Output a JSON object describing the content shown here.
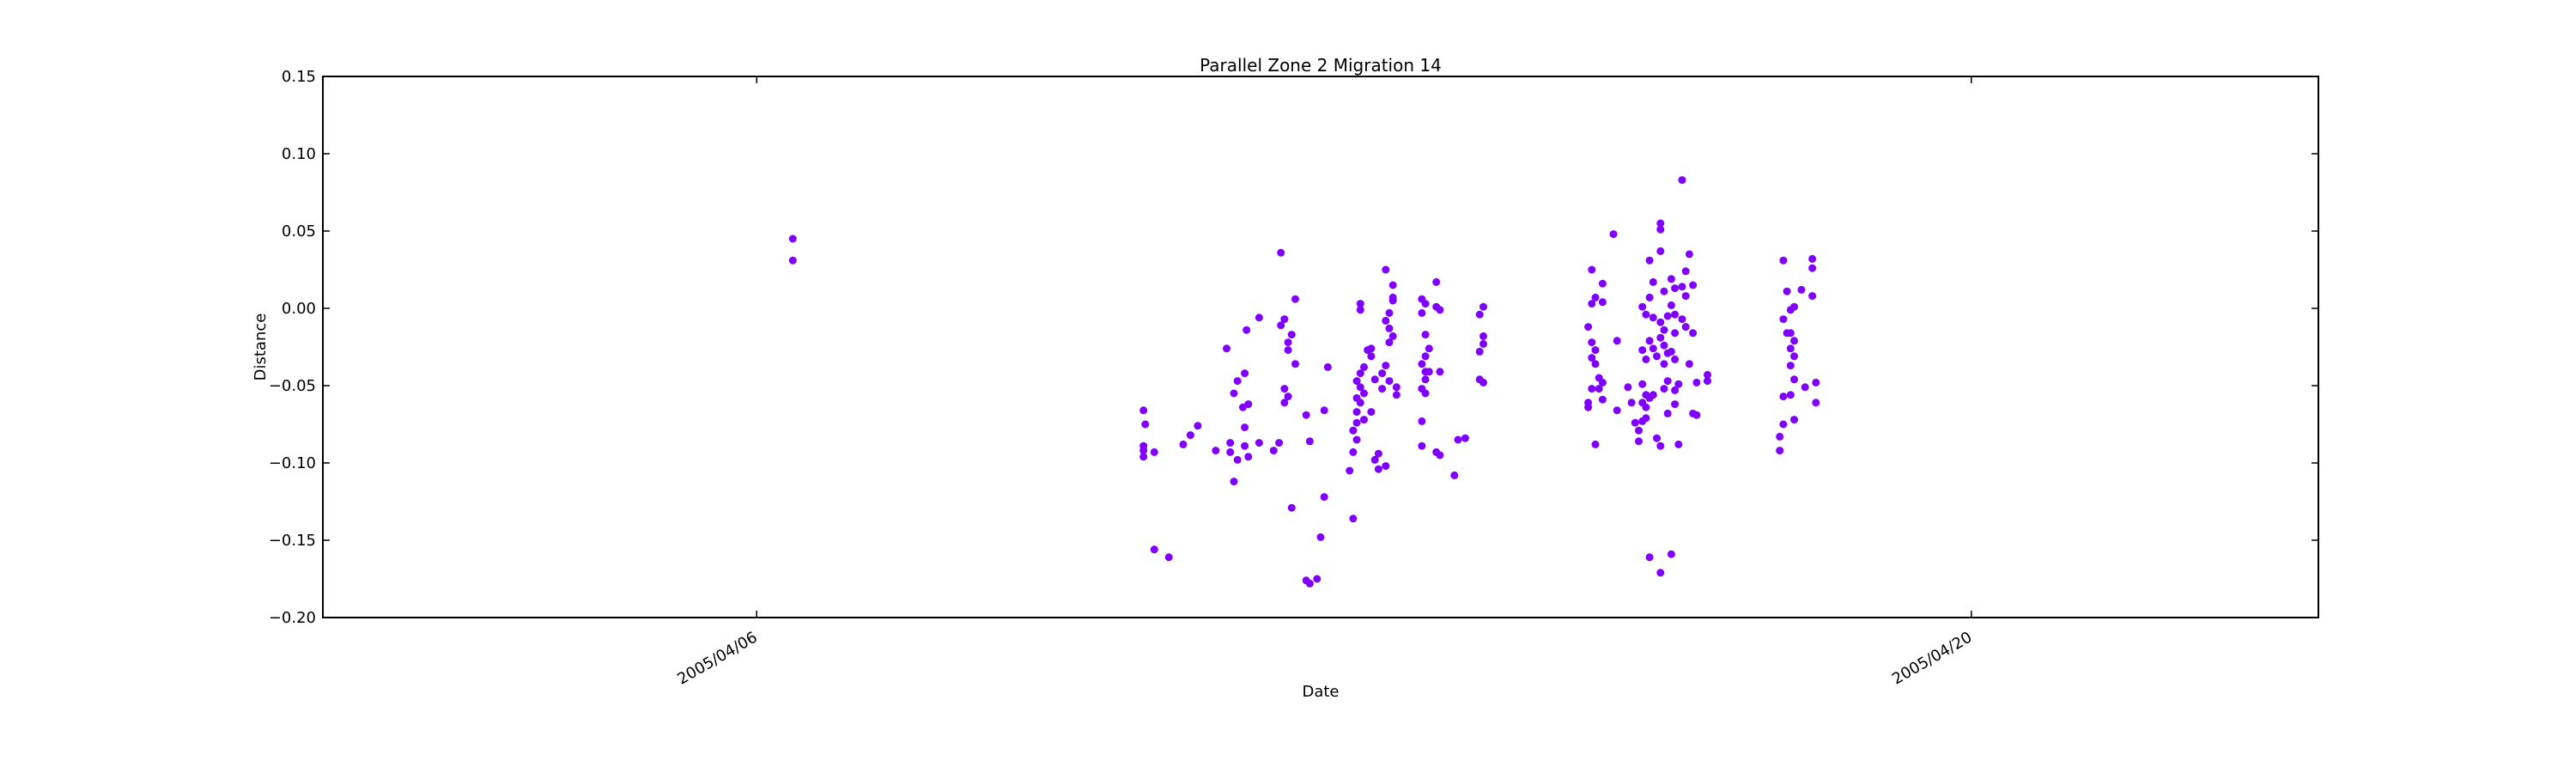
{
  "chart_data": {
    "type": "scatter",
    "title": "Parallel Zone 2 Migration 14",
    "xlabel": "Date",
    "ylabel": "Distance",
    "xlim": [
      "2005-04-01",
      "2005-04-24"
    ],
    "ylim": [
      -0.2,
      0.15
    ],
    "yticks": [
      -0.2,
      -0.15,
      -0.1,
      -0.05,
      0.0,
      0.05,
      0.1,
      0.15
    ],
    "ytick_labels": [
      "−0.20",
      "−0.15",
      "−0.10",
      "−0.05",
      "0.00",
      "0.05",
      "0.10",
      "0.15"
    ],
    "xticks": [
      "2005-04-06",
      "2005-04-20"
    ],
    "xtick_labels": [
      "2005/04/06",
      "2005/04/20"
    ],
    "grid": false,
    "marker_color": "#7f00ff",
    "series": [
      {
        "points": [
          [
            "2005-04-06 10:00",
            0.045
          ],
          [
            "2005-04-06 10:00",
            0.031
          ],
          [
            "2005-04-10 11:00",
            -0.066
          ],
          [
            "2005-04-10 11:30",
            -0.075
          ],
          [
            "2005-04-10 11:00",
            -0.089
          ],
          [
            "2005-04-10 11:00",
            -0.092
          ],
          [
            "2005-04-10 11:00",
            -0.096
          ],
          [
            "2005-04-10 14:00",
            -0.093
          ],
          [
            "2005-04-10 14:00",
            -0.156
          ],
          [
            "2005-04-10 18:00",
            -0.161
          ],
          [
            "2005-04-10 22:00",
            -0.088
          ],
          [
            "2005-04-11 00:00",
            -0.082
          ],
          [
            "2005-04-11 02:00",
            -0.076
          ],
          [
            "2005-04-11 07:00",
            -0.092
          ],
          [
            "2005-04-11 10:00",
            -0.026
          ],
          [
            "2005-04-11 12:00",
            -0.055
          ],
          [
            "2005-04-11 13:00",
            -0.047
          ],
          [
            "2005-04-11 11:00",
            -0.087
          ],
          [
            "2005-04-11 11:00",
            -0.093
          ],
          [
            "2005-04-11 13:00",
            -0.098
          ],
          [
            "2005-04-11 12:00",
            -0.112
          ],
          [
            "2005-04-11 15:00",
            -0.042
          ],
          [
            "2005-04-11 16:00",
            -0.062
          ],
          [
            "2005-04-11 14:30",
            -0.064
          ],
          [
            "2005-04-11 15:00",
            -0.077
          ],
          [
            "2005-04-11 15:00",
            -0.089
          ],
          [
            "2005-04-11 16:00",
            -0.096
          ],
          [
            "2005-04-11 15:30",
            -0.014
          ],
          [
            "2005-04-11 19:00",
            -0.006
          ],
          [
            "2005-04-11 19:00",
            -0.087
          ],
          [
            "2005-04-11 23:00",
            -0.092
          ],
          [
            "2005-04-12 01:00",
            0.036
          ],
          [
            "2005-04-12 01:00",
            -0.011
          ],
          [
            "2005-04-12 02:00",
            -0.007
          ],
          [
            "2005-04-12 04:00",
            -0.017
          ],
          [
            "2005-04-12 03:00",
            -0.022
          ],
          [
            "2005-04-12 03:00",
            -0.027
          ],
          [
            "2005-04-12 02:00",
            -0.052
          ],
          [
            "2005-04-12 03:00",
            -0.057
          ],
          [
            "2005-04-12 02:00",
            -0.061
          ],
          [
            "2005-04-12 00:30",
            -0.087
          ],
          [
            "2005-04-12 05:00",
            0.006
          ],
          [
            "2005-04-12 05:00",
            -0.036
          ],
          [
            "2005-04-12 04:00",
            -0.129
          ],
          [
            "2005-04-12 08:00",
            -0.069
          ],
          [
            "2005-04-12 09:00",
            -0.086
          ],
          [
            "2005-04-12 08:00",
            -0.176
          ],
          [
            "2005-04-12 09:00",
            -0.178
          ],
          [
            "2005-04-12 11:00",
            -0.175
          ],
          [
            "2005-04-12 14:00",
            -0.038
          ],
          [
            "2005-04-12 13:00",
            -0.066
          ],
          [
            "2005-04-12 13:00",
            -0.122
          ],
          [
            "2005-04-12 12:00",
            -0.148
          ],
          [
            "2005-04-12 21:00",
            -0.136
          ],
          [
            "2005-04-12 20:00",
            -0.105
          ],
          [
            "2005-04-12 23:00",
            0.003
          ],
          [
            "2005-04-12 23:00",
            -0.001
          ],
          [
            "2005-04-12 21:00",
            -0.093
          ],
          [
            "2005-04-12 21:00",
            -0.079
          ],
          [
            "2005-04-12 22:00",
            -0.074
          ],
          [
            "2005-04-12 22:00",
            -0.067
          ],
          [
            "2005-04-12 23:00",
            -0.061
          ],
          [
            "2005-04-13 00:00",
            -0.072
          ],
          [
            "2005-04-12 22:00",
            -0.058
          ],
          [
            "2005-04-12 23:00",
            -0.051
          ],
          [
            "2005-04-12 22:00",
            -0.047
          ],
          [
            "2005-04-12 23:00",
            -0.042
          ],
          [
            "2005-04-13 00:00",
            -0.038
          ],
          [
            "2005-04-13 00:00",
            -0.055
          ],
          [
            "2005-04-12 21:00",
            -0.079
          ],
          [
            "2005-04-12 22:00",
            -0.085
          ],
          [
            "2005-04-13 02:00",
            -0.026
          ],
          [
            "2005-04-13 02:00",
            -0.031
          ],
          [
            "2005-04-13 03:00",
            -0.046
          ],
          [
            "2005-04-13 02:00",
            -0.067
          ],
          [
            "2005-04-13 03:00",
            -0.098
          ],
          [
            "2005-04-13 04:00",
            -0.104
          ],
          [
            "2005-04-13 04:00",
            -0.094
          ],
          [
            "2005-04-13 01:00",
            -0.027
          ],
          [
            "2005-04-13 06:00",
            0.025
          ],
          [
            "2005-04-13 08:00",
            0.015
          ],
          [
            "2005-04-13 08:00",
            0.007
          ],
          [
            "2005-04-13 07:00",
            -0.003
          ],
          [
            "2005-04-13 06:00",
            -0.008
          ],
          [
            "2005-04-13 07:00",
            -0.013
          ],
          [
            "2005-04-13 08:00",
            -0.018
          ],
          [
            "2005-04-13 07:00",
            -0.022
          ],
          [
            "2005-04-13 06:00",
            -0.037
          ],
          [
            "2005-04-13 05:00",
            -0.042
          ],
          [
            "2005-04-13 07:00",
            -0.047
          ],
          [
            "2005-04-13 05:00",
            -0.052
          ],
          [
            "2005-04-13 09:00",
            -0.056
          ],
          [
            "2005-04-13 06:00",
            -0.102
          ],
          [
            "2005-04-13 09:00",
            -0.051
          ],
          [
            "2005-04-13 08:00",
            0.005
          ],
          [
            "2005-04-13 16:00",
            0.006
          ],
          [
            "2005-04-13 17:00",
            0.003
          ],
          [
            "2005-04-13 16:00",
            -0.003
          ],
          [
            "2005-04-13 17:00",
            -0.017
          ],
          [
            "2005-04-13 18:00",
            -0.026
          ],
          [
            "2005-04-13 17:00",
            -0.031
          ],
          [
            "2005-04-13 16:00",
            -0.036
          ],
          [
            "2005-04-13 18:00",
            -0.041
          ],
          [
            "2005-04-13 17:00",
            -0.046
          ],
          [
            "2005-04-13 16:00",
            -0.052
          ],
          [
            "2005-04-13 17:00",
            -0.055
          ],
          [
            "2005-04-13 16:00",
            -0.073
          ],
          [
            "2005-04-13 16:00",
            -0.089
          ],
          [
            "2005-04-13 17:00",
            -0.041
          ],
          [
            "2005-04-13 20:00",
            0.017
          ],
          [
            "2005-04-13 20:00",
            0.001
          ],
          [
            "2005-04-13 21:00",
            -0.001
          ],
          [
            "2005-04-13 20:00",
            -0.093
          ],
          [
            "2005-04-13 21:00",
            -0.095
          ],
          [
            "2005-04-13 21:00",
            -0.041
          ],
          [
            "2005-04-14 01:00",
            -0.108
          ],
          [
            "2005-04-14 02:00",
            -0.085
          ],
          [
            "2005-04-14 04:00",
            -0.084
          ],
          [
            "2005-04-14 09:00",
            0.001
          ],
          [
            "2005-04-14 08:00",
            -0.004
          ],
          [
            "2005-04-14 09:00",
            -0.018
          ],
          [
            "2005-04-14 08:00",
            -0.028
          ],
          [
            "2005-04-14 09:00",
            -0.023
          ],
          [
            "2005-04-14 08:00",
            -0.046
          ],
          [
            "2005-04-14 09:00",
            -0.048
          ],
          [
            "2005-04-15 15:00",
            0.025
          ],
          [
            "2005-04-15 15:00",
            0.003
          ],
          [
            "2005-04-15 16:00",
            0.007
          ],
          [
            "2005-04-15 14:00",
            -0.012
          ],
          [
            "2005-04-15 15:00",
            -0.022
          ],
          [
            "2005-04-15 16:00",
            -0.027
          ],
          [
            "2005-04-15 15:00",
            -0.032
          ],
          [
            "2005-04-15 16:00",
            -0.036
          ],
          [
            "2005-04-15 14:00",
            -0.061
          ],
          [
            "2005-04-15 14:00",
            -0.064
          ],
          [
            "2005-04-15 16:00",
            -0.088
          ],
          [
            "2005-04-15 15:00",
            -0.052
          ],
          [
            "2005-04-15 18:00",
            0.016
          ],
          [
            "2005-04-15 18:00",
            0.004
          ],
          [
            "2005-04-15 17:00",
            -0.045
          ],
          [
            "2005-04-15 18:00",
            -0.048
          ],
          [
            "2005-04-15 17:00",
            -0.052
          ],
          [
            "2005-04-15 18:00",
            -0.059
          ],
          [
            "2005-04-15 21:00",
            0.048
          ],
          [
            "2005-04-15 22:00",
            -0.021
          ],
          [
            "2005-04-15 22:00",
            -0.066
          ],
          [
            "2005-04-16 01:00",
            -0.051
          ],
          [
            "2005-04-16 02:00",
            -0.061
          ],
          [
            "2005-04-16 03:00",
            -0.074
          ],
          [
            "2005-04-16 04:00",
            -0.079
          ],
          [
            "2005-04-16 04:00",
            -0.086
          ],
          [
            "2005-04-16 05:00",
            0.001
          ],
          [
            "2005-04-16 06:00",
            -0.004
          ],
          [
            "2005-04-16 05:00",
            -0.027
          ],
          [
            "2005-04-16 06:00",
            -0.033
          ],
          [
            "2005-04-16 05:00",
            -0.049
          ],
          [
            "2005-04-16 06:00",
            -0.056
          ],
          [
            "2005-04-16 05:00",
            -0.061
          ],
          [
            "2005-04-16 06:00",
            -0.064
          ],
          [
            "2005-04-16 07:00",
            -0.058
          ],
          [
            "2005-04-16 05:00",
            -0.073
          ],
          [
            "2005-04-16 06:00",
            -0.071
          ],
          [
            "2005-04-16 07:00",
            -0.161
          ],
          [
            "2005-04-16 07:00",
            0.031
          ],
          [
            "2005-04-16 08:00",
            0.017
          ],
          [
            "2005-04-16 07:00",
            0.007
          ],
          [
            "2005-04-16 08:00",
            -0.006
          ],
          [
            "2005-04-16 07:00",
            -0.021
          ],
          [
            "2005-04-16 08:00",
            -0.026
          ],
          [
            "2005-04-16 09:00",
            -0.031
          ],
          [
            "2005-04-16 08:00",
            -0.056
          ],
          [
            "2005-04-16 09:00",
            -0.084
          ],
          [
            "2005-04-16 10:00",
            -0.089
          ],
          [
            "2005-04-16 10:00",
            -0.171
          ],
          [
            "2005-04-16 10:00",
            0.055
          ],
          [
            "2005-04-16 10:00",
            0.051
          ],
          [
            "2005-04-16 10:00",
            0.037
          ],
          [
            "2005-04-16 11:00",
            0.011
          ],
          [
            "2005-04-16 10:00",
            -0.009
          ],
          [
            "2005-04-16 11:00",
            -0.014
          ],
          [
            "2005-04-16 10:00",
            -0.019
          ],
          [
            "2005-04-16 11:00",
            -0.024
          ],
          [
            "2005-04-16 12:00",
            -0.029
          ],
          [
            "2005-04-16 11:00",
            -0.036
          ],
          [
            "2005-04-16 12:00",
            -0.047
          ],
          [
            "2005-04-16 11:00",
            -0.052
          ],
          [
            "2005-04-16 12:00",
            -0.068
          ],
          [
            "2005-04-16 13:00",
            -0.159
          ],
          [
            "2005-04-16 12:00",
            -0.005
          ],
          [
            "2005-04-16 13:00",
            0.019
          ],
          [
            "2005-04-16 14:00",
            0.013
          ],
          [
            "2005-04-16 13:00",
            0.002
          ],
          [
            "2005-04-16 14:00",
            -0.004
          ],
          [
            "2005-04-16 14:00",
            -0.016
          ],
          [
            "2005-04-16 13:00",
            -0.028
          ],
          [
            "2005-04-16 14:00",
            -0.033
          ],
          [
            "2005-04-16 15:00",
            -0.049
          ],
          [
            "2005-04-16 14:00",
            -0.053
          ],
          [
            "2005-04-16 15:00",
            -0.088
          ],
          [
            "2005-04-16 14:00",
            -0.062
          ],
          [
            "2005-04-16 16:00",
            0.083
          ],
          [
            "2005-04-16 17:00",
            0.024
          ],
          [
            "2005-04-16 16:00",
            0.014
          ],
          [
            "2005-04-16 17:00",
            0.008
          ],
          [
            "2005-04-16 16:00",
            -0.007
          ],
          [
            "2005-04-16 17:00",
            -0.012
          ],
          [
            "2005-04-16 18:00",
            -0.036
          ],
          [
            "2005-04-16 18:00",
            0.035
          ],
          [
            "2005-04-16 19:00",
            0.015
          ],
          [
            "2005-04-16 19:00",
            -0.016
          ],
          [
            "2005-04-16 20:00",
            -0.048
          ],
          [
            "2005-04-16 19:00",
            -0.068
          ],
          [
            "2005-04-16 20:00",
            -0.069
          ],
          [
            "2005-04-16 23:00",
            -0.043
          ],
          [
            "2005-04-16 23:00",
            -0.047
          ],
          [
            "2005-04-17 20:00",
            0.031
          ],
          [
            "2005-04-17 21:00",
            0.011
          ],
          [
            "2005-04-17 20:00",
            -0.007
          ],
          [
            "2005-04-17 21:00",
            -0.016
          ],
          [
            "2005-04-17 20:00",
            -0.057
          ],
          [
            "2005-04-17 19:00",
            -0.083
          ],
          [
            "2005-04-17 19:00",
            -0.092
          ],
          [
            "2005-04-17 20:00",
            -0.075
          ],
          [
            "2005-04-17 22:00",
            -0.001
          ],
          [
            "2005-04-17 23:00",
            0.001
          ],
          [
            "2005-04-17 22:00",
            -0.016
          ],
          [
            "2005-04-17 23:00",
            -0.021
          ],
          [
            "2005-04-17 22:00",
            -0.026
          ],
          [
            "2005-04-17 23:00",
            -0.031
          ],
          [
            "2005-04-17 22:00",
            -0.037
          ],
          [
            "2005-04-17 23:00",
            -0.046
          ],
          [
            "2005-04-17 22:00",
            -0.056
          ],
          [
            "2005-04-17 23:00",
            -0.072
          ],
          [
            "2005-04-18 01:00",
            0.012
          ],
          [
            "2005-04-18 02:00",
            -0.051
          ],
          [
            "2005-04-18 04:00",
            0.032
          ],
          [
            "2005-04-18 04:00",
            0.026
          ],
          [
            "2005-04-18 04:00",
            0.008
          ],
          [
            "2005-04-18 05:00",
            -0.048
          ],
          [
            "2005-04-18 05:00",
            -0.061
          ]
        ]
      }
    ]
  }
}
